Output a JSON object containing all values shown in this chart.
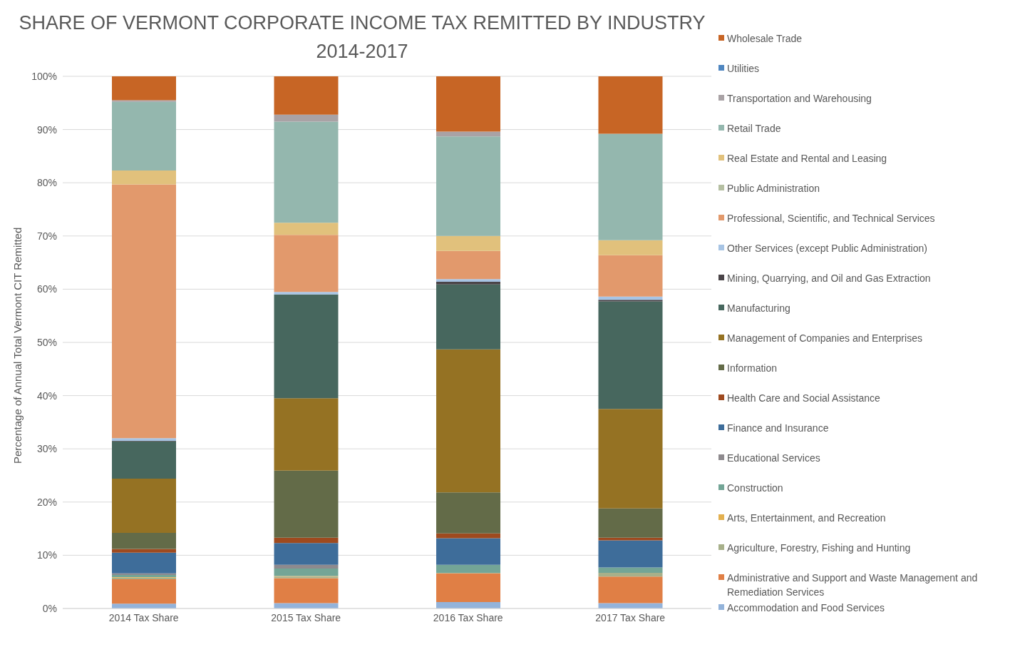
{
  "chart_data": {
    "type": "bar",
    "title": "SHARE OF VERMONT CORPORATE INCOME TAX REMITTED BY INDUSTRY",
    "subtitle": "2014-2017",
    "ylabel": "Percentage of Annual Total Vermont CIT Remitted",
    "categories": [
      "2014 Tax Share",
      "2015 Tax Share",
      "2016 Tax Share",
      "2017 Tax Share"
    ],
    "stacked": true,
    "grid": "y",
    "legend": "right",
    "ylim": [
      0,
      100
    ],
    "yticks": [
      {
        "value": 0,
        "label": "0%"
      },
      {
        "value": 10,
        "label": "10%"
      },
      {
        "value": 20,
        "label": "20%"
      },
      {
        "value": 30,
        "label": "30%"
      },
      {
        "value": 40,
        "label": "40%"
      },
      {
        "value": 50,
        "label": "50%"
      },
      {
        "value": 60,
        "label": "60%"
      },
      {
        "value": 70,
        "label": "70%"
      },
      {
        "value": 80,
        "label": "80%"
      },
      {
        "value": 90,
        "label": "90%"
      },
      {
        "value": 100,
        "label": "100%"
      }
    ],
    "series": [
      {
        "name": "Accommodation and Food Services",
        "color": "#93b3da",
        "values": [
          0.9,
          1.0,
          1.2,
          1.0
        ]
      },
      {
        "name": "Administrative and Support and Waste Management and Remediation Services",
        "color": "#e07f45",
        "values": [
          4.6,
          4.7,
          5.4,
          5.0
        ]
      },
      {
        "name": "Agriculture, Forestry, Fishing and Hunting",
        "color": "#a7b08a",
        "values": [
          0.3,
          0.3,
          0.1,
          0.7
        ]
      },
      {
        "name": "Arts, Entertainment, and Recreation",
        "color": "#e3b04f",
        "values": [
          0.1,
          0.1,
          0,
          0
        ]
      },
      {
        "name": "Construction",
        "color": "#73a596",
        "values": [
          0.4,
          1.4,
          1.5,
          1.0
        ]
      },
      {
        "name": "Educational Services",
        "color": "#8e8a8e",
        "values": [
          0.3,
          0.7,
          0,
          0
        ]
      },
      {
        "name": "Finance and Insurance",
        "color": "#3e6d9a",
        "values": [
          3.9,
          4.1,
          5.0,
          5.1
        ]
      },
      {
        "name": "Health Care and Social Assistance",
        "color": "#9e4a1f",
        "values": [
          0.7,
          1.0,
          0.9,
          0.5
        ]
      },
      {
        "name": "Information",
        "color": "#636b48",
        "values": [
          3.0,
          12.6,
          7.7,
          5.5
        ]
      },
      {
        "name": "Management of Companies and Enterprises",
        "color": "#957223",
        "values": [
          10.2,
          13.6,
          26.9,
          18.7
        ]
      },
      {
        "name": "Manufacturing",
        "color": "#47675e",
        "values": [
          7.0,
          19.5,
          12.2,
          20.2
        ]
      },
      {
        "name": "Mining, Quarrying, and Oil and Gas Extraction",
        "color": "#4a4448",
        "values": [
          0.1,
          0,
          0.5,
          0.3
        ]
      },
      {
        "name": "Other Services (except Public Administration)",
        "color": "#a7c4e4",
        "values": [
          0.5,
          0.5,
          0.5,
          0.6
        ]
      },
      {
        "name": "Professional, Scientific, and Technical Services",
        "color": "#e2996c",
        "values": [
          47.7,
          10.7,
          5.3,
          7.8
        ]
      },
      {
        "name": "Public Administration",
        "color": "#b5bfa2",
        "values": [
          0,
          0,
          0,
          0
        ]
      },
      {
        "name": "Real Estate and Rental and Leasing",
        "color": "#e1c17c",
        "values": [
          2.6,
          2.3,
          2.8,
          2.8
        ]
      },
      {
        "name": "Retail Trade",
        "color": "#94b7ae",
        "values": [
          12.9,
          19.0,
          18.7,
          20.0
        ]
      },
      {
        "name": "Transportation and Warehousing",
        "color": "#a9a2a5",
        "values": [
          0.3,
          1.3,
          0.9,
          0
        ]
      },
      {
        "name": "Utilities",
        "color": "#4f86c0",
        "values": [
          0,
          0,
          0,
          0
        ]
      },
      {
        "name": "Wholesale Trade",
        "color": "#c76525",
        "values": [
          4.5,
          7.2,
          10.4,
          10.8
        ]
      }
    ]
  }
}
